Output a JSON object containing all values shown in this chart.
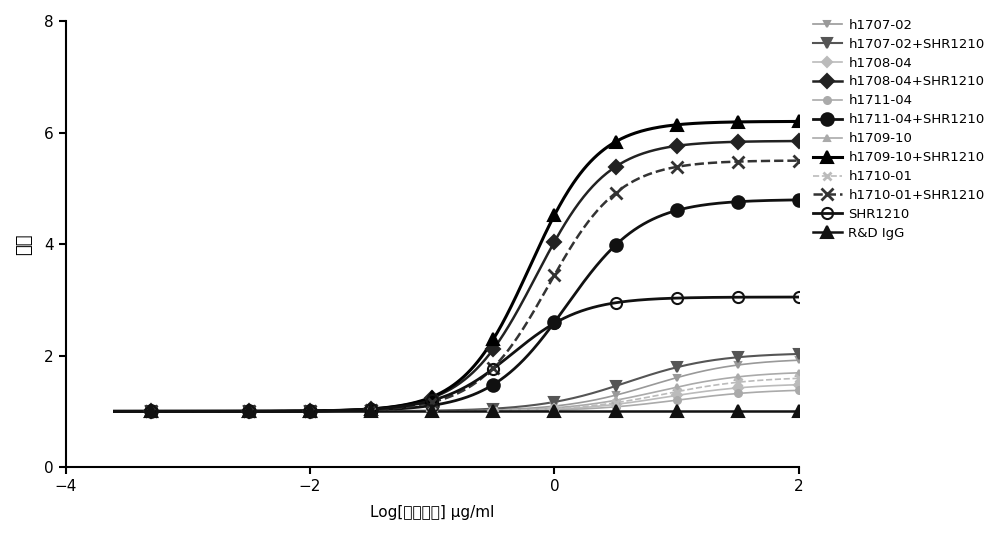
{
  "xlabel": "Log[抗体浓度] μg/ml",
  "ylabel": "倍数",
  "xlim": [
    -4,
    2
  ],
  "ylim": [
    0,
    8
  ],
  "xticks": [
    -4,
    -2,
    0,
    2
  ],
  "yticks": [
    0,
    2,
    4,
    6,
    8
  ],
  "series": [
    {
      "label": "h1707-02",
      "color": "#999999",
      "linestyle": "-",
      "marker": "v",
      "markersize": 5,
      "linewidth": 1.2,
      "fillstyle": "full",
      "bottom": 1.0,
      "top": 1.95,
      "ec50": 0.8,
      "hillslope": 1.2
    },
    {
      "label": "h1707-02+SHR1210",
      "color": "#555555",
      "linestyle": "-",
      "marker": "v",
      "markersize": 7,
      "linewidth": 1.5,
      "fillstyle": "full",
      "bottom": 1.0,
      "top": 2.05,
      "ec50": 0.6,
      "hillslope": 1.2
    },
    {
      "label": "h1708-04",
      "color": "#bbbbbb",
      "linestyle": "-",
      "marker": "D",
      "markersize": 5,
      "linewidth": 1.2,
      "fillstyle": "full",
      "bottom": 1.0,
      "top": 1.5,
      "ec50": 0.9,
      "hillslope": 1.2
    },
    {
      "label": "h1708-04+SHR1210",
      "color": "#222222",
      "linestyle": "-",
      "marker": "D",
      "markersize": 7,
      "linewidth": 1.8,
      "fillstyle": "full",
      "bottom": 1.0,
      "top": 5.85,
      "ec50": -0.15,
      "hillslope": 1.5
    },
    {
      "label": "h1711-04",
      "color": "#aaaaaa",
      "linestyle": "-",
      "marker": "o",
      "markersize": 5,
      "linewidth": 1.2,
      "fillstyle": "full",
      "bottom": 1.0,
      "top": 1.4,
      "ec50": 1.0,
      "hillslope": 1.2
    },
    {
      "label": "h1711-04+SHR1210",
      "color": "#111111",
      "linestyle": "-",
      "marker": "o",
      "markersize": 9,
      "linewidth": 2.0,
      "fillstyle": "full",
      "bottom": 1.0,
      "top": 4.8,
      "ec50": 0.1,
      "hillslope": 1.4
    },
    {
      "label": "h1709-10",
      "color": "#aaaaaa",
      "linestyle": "-",
      "marker": "^",
      "markersize": 5,
      "linewidth": 1.2,
      "fillstyle": "full",
      "bottom": 1.0,
      "top": 1.72,
      "ec50": 0.85,
      "hillslope": 1.2
    },
    {
      "label": "h1709-10+SHR1210",
      "color": "#000000",
      "linestyle": "-",
      "marker": "^",
      "markersize": 9,
      "linewidth": 2.2,
      "fillstyle": "full",
      "bottom": 1.0,
      "top": 6.2,
      "ec50": -0.2,
      "hillslope": 1.6
    },
    {
      "label": "h1710-01",
      "color": "#bbbbbb",
      "linestyle": "--",
      "marker": "x",
      "markersize": 6,
      "linewidth": 1.2,
      "fillstyle": "full",
      "bottom": 1.0,
      "top": 1.62,
      "ec50": 0.9,
      "hillslope": 1.2
    },
    {
      "label": "h1710-01+SHR1210",
      "color": "#333333",
      "linestyle": "--",
      "marker": "x",
      "markersize": 9,
      "linewidth": 1.8,
      "fillstyle": "full",
      "bottom": 1.0,
      "top": 5.5,
      "ec50": -0.05,
      "hillslope": 1.5
    },
    {
      "label": "SHR1210",
      "color": "#111111",
      "linestyle": "-",
      "marker": "o",
      "markersize": 8,
      "linewidth": 2.0,
      "fillstyle": "none",
      "bottom": 1.0,
      "top": 3.05,
      "ec50": -0.35,
      "hillslope": 1.5
    },
    {
      "label": "R&D IgG",
      "color": "#111111",
      "linestyle": "-",
      "marker": "^",
      "markersize": 8,
      "linewidth": 1.8,
      "fillstyle": "full",
      "bottom": 1.0,
      "top": 1.0,
      "ec50": 0.0,
      "hillslope": 1.0,
      "flat": true
    }
  ],
  "data_points": [
    -3.3,
    -2.5,
    -2.0,
    -1.5,
    -1.0,
    -0.5,
    0.0,
    0.5,
    1.0,
    1.5,
    2.0
  ]
}
